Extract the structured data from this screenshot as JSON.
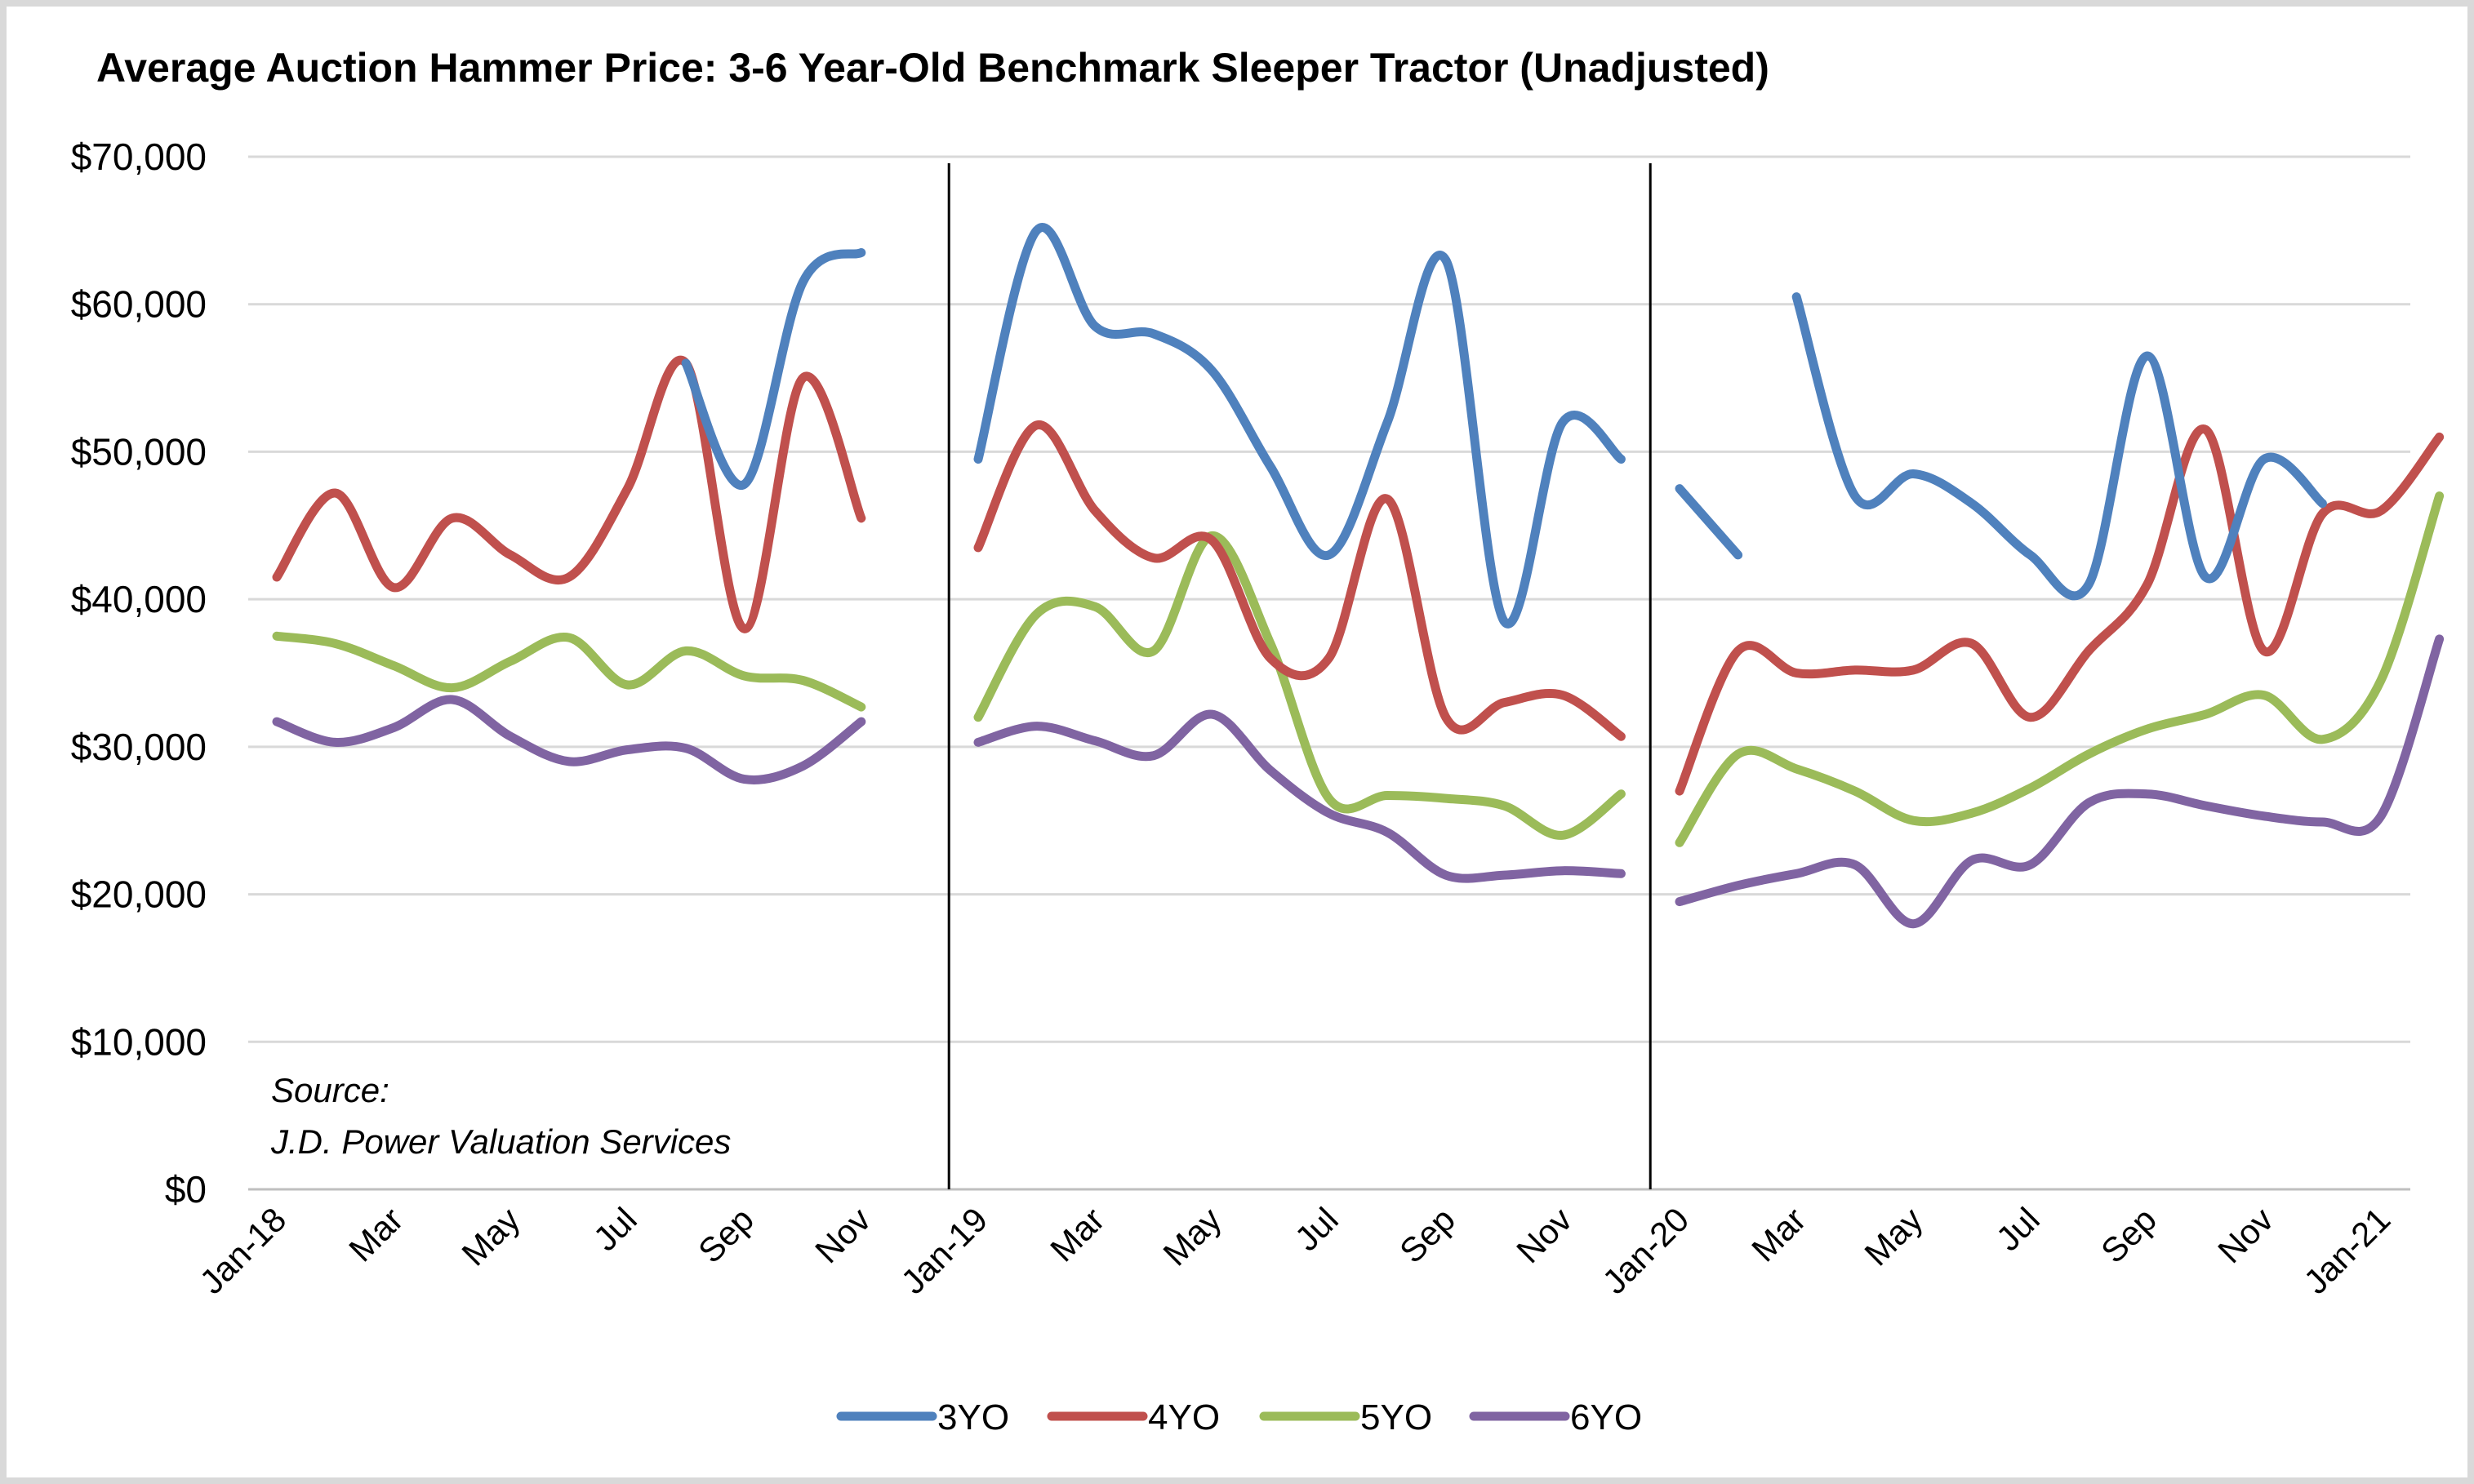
{
  "chart_data": {
    "type": "line",
    "title": "Average Auction Hammer Price: 3-6 Year-Old Benchmark Sleeper Tractor (Unadjusted)",
    "xlabel": "",
    "ylabel": "",
    "ylim": [
      0,
      70000
    ],
    "y_ticks": [
      "$70,000",
      "$60,000",
      "$50,000",
      "$40,000",
      "$30,000",
      "$20,000",
      "$10,000",
      "$0"
    ],
    "y_tick_values": [
      70000,
      60000,
      50000,
      40000,
      30000,
      20000,
      10000,
      0
    ],
    "categories": [
      "Jan-18",
      "Feb-18",
      "Mar-18",
      "Apr-18",
      "May-18",
      "Jun-18",
      "Jul-18",
      "Aug-18",
      "Sep-18",
      "Oct-18",
      "Nov-18",
      "Dec-18",
      "Jan-19",
      "Feb-19",
      "Mar-19",
      "Apr-19",
      "May-19",
      "Jun-19",
      "Jul-19",
      "Aug-19",
      "Sep-19",
      "Oct-19",
      "Nov-19",
      "Dec-19",
      "Jan-20",
      "Feb-20",
      "Mar-20",
      "Apr-20",
      "May-20",
      "Jun-20",
      "Jul-20",
      "Aug-20",
      "Sep-20",
      "Oct-20",
      "Nov-20",
      "Dec-20",
      "Jan-21"
    ],
    "x_tick_labels": [
      {
        "index": 0,
        "label": "Jan-18"
      },
      {
        "index": 2,
        "label": "Mar"
      },
      {
        "index": 4,
        "label": "May"
      },
      {
        "index": 6,
        "label": "Jul"
      },
      {
        "index": 8,
        "label": "Sep"
      },
      {
        "index": 10,
        "label": "Nov"
      },
      {
        "index": 12,
        "label": "Jan-19"
      },
      {
        "index": 14,
        "label": "Mar"
      },
      {
        "index": 16,
        "label": "May"
      },
      {
        "index": 18,
        "label": "Jul"
      },
      {
        "index": 20,
        "label": "Sep"
      },
      {
        "index": 22,
        "label": "Nov"
      },
      {
        "index": 24,
        "label": "Jan-20"
      },
      {
        "index": 26,
        "label": "Mar"
      },
      {
        "index": 28,
        "label": "May"
      },
      {
        "index": 30,
        "label": "Jul"
      },
      {
        "index": 32,
        "label": "Sep"
      },
      {
        "index": 34,
        "label": "Nov"
      },
      {
        "index": 36,
        "label": "Jan-21"
      }
    ],
    "year_dividers": [
      11.5,
      23.5
    ],
    "grid": true,
    "legend_position": "bottom",
    "series": [
      {
        "name": "3YO",
        "color": "#4f81bd",
        "segments": [
          {
            "start": 7,
            "values": [
              56000,
              47800,
              61500,
              63500
            ]
          },
          {
            "start": 12,
            "values": [
              49500,
              65000,
              58500,
              58000,
              55500,
              49000,
              43000,
              52000,
              63000,
              38500,
              52000,
              49500
            ]
          },
          {
            "start": 24,
            "values": [
              47500,
              43000
            ]
          },
          {
            "start": 26,
            "values": [
              60500,
              47000,
              48500,
              46500,
              43000,
              41000,
              56500,
              41500,
              49500,
              46500
            ]
          }
        ]
      },
      {
        "name": "4YO",
        "color": "#c0504d",
        "segments": [
          {
            "start": 0,
            "values": [
              41500,
              47200,
              40800,
              45500,
              43000,
              41500,
              47500,
              56000,
              38000,
              55000,
              45500
            ]
          },
          {
            "start": 12,
            "values": [
              43500,
              51800,
              46000,
              42800,
              44000,
              36000,
              36000,
              46800,
              32000,
              33000,
              33500,
              30700
            ]
          },
          {
            "start": 24,
            "values": [
              27000,
              36500,
              35000,
              35200,
              35200,
              37000,
              32000,
              36500,
              41000,
              51500,
              36500,
              45800,
              46000,
              51000
            ]
          }
        ]
      },
      {
        "name": "5YO",
        "color": "#9bbb59",
        "segments": [
          {
            "start": 0,
            "values": [
              37500,
              37000,
              35500,
              34000,
              35800,
              37400,
              34200,
              36500,
              34800,
              34500,
              32700
            ]
          },
          {
            "start": 12,
            "values": [
              32000,
              39000,
              39500,
              36500,
              44300,
              37000,
              26500,
              26700,
              26500,
              26000,
              24000,
              26800
            ]
          },
          {
            "start": 24,
            "values": [
              23500,
              29500,
              28500,
              27000,
              25000,
              25500,
              27200,
              29500,
              31200,
              32200,
              33500,
              30500,
              34500,
              47000
            ]
          }
        ]
      },
      {
        "name": "6YO",
        "color": "#8064a2",
        "segments": [
          {
            "start": 0,
            "values": [
              31700,
              30300,
              31300,
              33200,
              30700,
              29000,
              29800,
              29900,
              27800,
              28700,
              31700
            ]
          },
          {
            "start": 12,
            "values": [
              30300,
              31400,
              30400,
              29400,
              32200,
              28400,
              25500,
              24200,
              21300,
              21300,
              21600,
              21400
            ]
          },
          {
            "start": 24,
            "values": [
              19500,
              20600,
              21400,
              22000,
              18000,
              22300,
              22000,
              26200,
              26800,
              26000,
              25300,
              24900,
              25300,
              37300
            ]
          }
        ]
      }
    ],
    "annotation": {
      "line1": "Source:",
      "line2": "J.D. Power Valuation Services"
    }
  }
}
